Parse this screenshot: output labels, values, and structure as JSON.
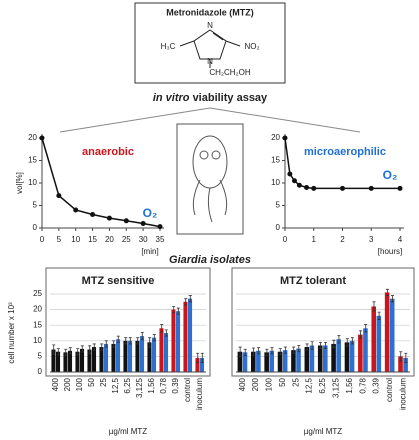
{
  "molecule": {
    "title": "Metronidazole (MTZ)",
    "labels": [
      "H₃C",
      "NO₂",
      "N",
      "N",
      "CH₂CH₂OH"
    ]
  },
  "assay_title": {
    "italic": "in vitro",
    "bold": "viability assay"
  },
  "isolates_title": "Giardia isolates",
  "chart_data": [
    {
      "type": "line",
      "ylabel": "vol[%]",
      "xlabel": "[min]",
      "x": [
        0,
        5,
        10,
        15,
        20,
        25,
        30,
        35
      ],
      "values": [
        20,
        7.2,
        4,
        3,
        2.2,
        1.6,
        1,
        0.3
      ],
      "color": "#111111",
      "xlim": [
        0,
        35
      ],
      "xticks": [
        0,
        5,
        10,
        15,
        20,
        25,
        30,
        35
      ],
      "ylim": [
        0,
        20
      ],
      "yticks": [
        0,
        5,
        10,
        15,
        20
      ],
      "annotations": [
        {
          "text": "anaerobic",
          "color": "#d0141c"
        },
        {
          "text": "O₂",
          "color": "#1f6fd6"
        }
      ]
    },
    {
      "type": "line",
      "xlabel": "[hours]",
      "x": [
        0,
        0.17,
        0.33,
        0.5,
        0.75,
        1,
        2,
        3,
        4
      ],
      "values": [
        20,
        12,
        10.5,
        9.5,
        9,
        8.8,
        8.8,
        8.8,
        8.8
      ],
      "color": "#111111",
      "xlim": [
        0,
        4
      ],
      "xticks": [
        0,
        1,
        2,
        3,
        4
      ],
      "ylim": [
        0,
        20
      ],
      "yticks": [
        0,
        5,
        10,
        15,
        20
      ],
      "annotations": [
        {
          "text": "microaerophilic",
          "color": "#1f6fd6"
        },
        {
          "text": "O₂",
          "color": "#1f6fd6"
        }
      ]
    },
    {
      "type": "bar",
      "title": "MTZ sensitive",
      "ylabel": "cell number x 10³",
      "xlabel": "µg/ml MTZ",
      "categories": [
        "400",
        "200",
        "100",
        "50",
        "25",
        "12,5",
        "6,25",
        "3,125",
        "1,56",
        "0,78",
        "0,39",
        "control",
        "inoculum"
      ],
      "series": [
        {
          "values": [
            7.2,
            6.3,
            6.5,
            7.2,
            8,
            9,
            10,
            10,
            9.5,
            14,
            20,
            22.5,
            4.5
          ],
          "errors": [
            1.5,
            1,
            1,
            1.2,
            1,
            1,
            1,
            1,
            1.5,
            1.2,
            1,
            1,
            1.5
          ],
          "colors": [
            "#111111",
            "#111111",
            "#111111",
            "#111111",
            "#111111",
            "#111111",
            "#111111",
            "#111111",
            "#111111",
            "#c8161d",
            "#c8161d",
            "#c8161d",
            "#c8161d"
          ]
        },
        {
          "values": [
            6.5,
            6.8,
            7.4,
            8,
            9,
            10.5,
            10,
            11.5,
            11,
            12.5,
            19.5,
            23.5,
            4.5
          ],
          "errors": [
            1,
            1,
            1,
            1,
            1,
            1,
            1,
            1.2,
            1,
            1,
            1,
            1,
            1.5
          ],
          "colors": [
            "#111111",
            "#111111",
            "#111111",
            "#111111",
            "#2e6fd0",
            "#2e6fd0",
            "#2e6fd0",
            "#2e6fd0",
            "#2e6fd0",
            "#2e6fd0",
            "#2e6fd0",
            "#2e6fd0",
            "#2e6fd0"
          ]
        }
      ],
      "ylim": [
        0,
        25
      ],
      "yticks": [
        0,
        5,
        10,
        15,
        20,
        25
      ],
      "grid": true,
      "ytick_labels": true
    },
    {
      "type": "bar",
      "title": "MTZ tolerant",
      "xlabel": "µg/ml MTZ",
      "categories": [
        "400",
        "200",
        "100",
        "50",
        "25",
        "12,5",
        "6,25",
        "3,125",
        "1,56",
        "0,78",
        "0,39",
        "control",
        "inoculum"
      ],
      "series": [
        {
          "values": [
            6.5,
            6.5,
            6.3,
            6.5,
            7,
            8,
            8.5,
            9,
            9.5,
            12,
            21,
            25.5,
            5
          ],
          "errors": [
            1.5,
            1.2,
            1,
            1,
            1,
            1,
            1,
            1.2,
            1.2,
            1.2,
            1.5,
            1,
            1.5
          ],
          "colors": [
            "#111111",
            "#111111",
            "#111111",
            "#111111",
            "#111111",
            "#111111",
            "#111111",
            "#111111",
            "#111111",
            "#c8161d",
            "#c8161d",
            "#c8161d",
            "#c8161d"
          ]
        },
        {
          "values": [
            6.3,
            6.8,
            6.8,
            7,
            7.5,
            8.5,
            8.5,
            10.5,
            10,
            14,
            18,
            23.5,
            4.5
          ],
          "errors": [
            1,
            1,
            1,
            1,
            1,
            1.2,
            1,
            1.2,
            1,
            1.2,
            1.2,
            1,
            1.5
          ],
          "colors": [
            "#2e6fd0",
            "#2e6fd0",
            "#2e6fd0",
            "#2e6fd0",
            "#2e6fd0",
            "#2e6fd0",
            "#2e6fd0",
            "#2e6fd0",
            "#2e6fd0",
            "#2e6fd0",
            "#2e6fd0",
            "#2e6fd0",
            "#2e6fd0"
          ]
        }
      ],
      "ylim": [
        0,
        25
      ],
      "yticks": [
        0,
        5,
        10,
        15,
        20,
        25
      ],
      "grid": true,
      "ytick_labels": false
    }
  ]
}
